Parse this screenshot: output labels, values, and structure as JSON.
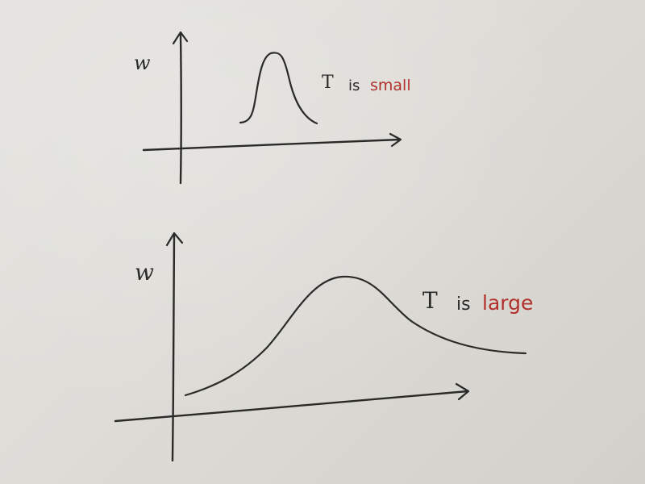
{
  "colors": {
    "ink": "#2a2a28",
    "red_ink": "#b2302c",
    "paper": "#dedcd7"
  },
  "panels": [
    {
      "name": "top-sketch",
      "y_axis_label": "w",
      "annotation": {
        "prefix": "T",
        "middle": "is",
        "highlight": "small"
      },
      "curve": "narrow peak"
    },
    {
      "name": "bottom-sketch",
      "y_axis_label": "w",
      "annotation": {
        "prefix": "T",
        "middle": "is",
        "highlight": "large"
      },
      "curve": "broad peak"
    }
  ]
}
